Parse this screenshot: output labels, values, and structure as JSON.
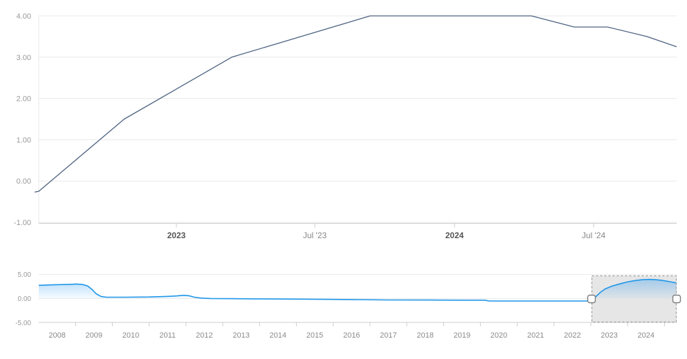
{
  "colors": {
    "background": "#ffffff",
    "grid": "#e9e9e9",
    "grid_light": "#ececec",
    "axis": "#cccccc",
    "y_label": "#999999",
    "x_label": "#888888",
    "x_label_bold": "#555555",
    "nav_year_label": "#8a8a8a",
    "main_line": "#4d6280",
    "nav_line": "#1e96e8",
    "nav_fill_top": "rgba(33,150,243,0.42)",
    "nav_fill_bottom": "rgba(33,150,243,0.03)",
    "selection_fill": "#e6e6e6",
    "selection_border": "#9a9a9a",
    "handle_fill": "#ffffff",
    "handle_border": "#7d7d7d"
  },
  "chart_data": [
    {
      "type": "line",
      "name": "main-chart",
      "title": "",
      "xlabel": "",
      "ylabel": "",
      "ylim": [
        -1,
        4
      ],
      "grid": true,
      "y_ticks": [
        {
          "v": 4,
          "label": "4.00"
        },
        {
          "v": 3,
          "label": "3.00"
        },
        {
          "v": 2,
          "label": "2.00"
        },
        {
          "v": 1,
          "label": "1.00"
        },
        {
          "v": 0,
          "label": "0.00"
        },
        {
          "v": -1,
          "label": "-1.00"
        }
      ],
      "x_ticks": [
        {
          "label": "2023",
          "fx": 0.2158,
          "bold": true
        },
        {
          "label": "Jul '23",
          "fx": 0.4328,
          "bold": false
        },
        {
          "label": "2024",
          "fx": 0.6518,
          "bold": true
        },
        {
          "label": "Jul '24",
          "fx": 0.8699,
          "bold": false
        }
      ],
      "series": [
        {
          "name": "rate-series",
          "color": "#4d6280",
          "points": [
            [
              "2022-07",
              -0.27,
              -0.0065
            ],
            [
              "2022-07",
              -0.25,
              0.0
            ],
            [
              "2022-11",
              1.5,
              0.134
            ],
            [
              "2023-03",
              3.0,
              0.3026
            ],
            [
              "2023-09",
              4.0,
              0.5195
            ],
            [
              "2024-04",
              4.0,
              0.7723
            ],
            [
              "2024-06",
              3.73,
              0.8395
            ],
            [
              "2024-07",
              3.73,
              0.8916
            ],
            [
              "2024-09",
              3.5,
              0.9534
            ],
            [
              "2024-10",
              3.25,
              1.0
            ]
          ]
        }
      ]
    },
    {
      "type": "area",
      "name": "navigator",
      "title": "",
      "ylim": [
        -5,
        5
      ],
      "grid": true,
      "y_ticks": [
        {
          "v": 5,
          "label": "5.00"
        },
        {
          "v": 0,
          "label": "0.00"
        },
        {
          "v": -5,
          "label": "-5.00"
        }
      ],
      "x_year_labels": [
        "2008",
        "2009",
        "2010",
        "2011",
        "2012",
        "2013",
        "2014",
        "2015",
        "2016",
        "2017",
        "2018",
        "2019",
        "2020",
        "2021",
        "2022",
        "2023",
        "2024"
      ],
      "series": [
        {
          "name": "rate-series-full-history",
          "color": "#1e96e8",
          "points": [
            [
              2008.0,
              2.75
            ],
            [
              2008.36,
              2.85
            ],
            [
              2008.83,
              2.95
            ],
            [
              2009.02,
              3.02
            ],
            [
              2009.2,
              2.92
            ],
            [
              2009.33,
              2.6
            ],
            [
              2009.45,
              1.9
            ],
            [
              2009.56,
              1.0
            ],
            [
              2009.69,
              0.45
            ],
            [
              2009.84,
              0.28
            ],
            [
              2010.33,
              0.28
            ],
            [
              2010.99,
              0.33
            ],
            [
              2011.46,
              0.45
            ],
            [
              2011.76,
              0.55
            ],
            [
              2011.95,
              0.68
            ],
            [
              2012.08,
              0.58
            ],
            [
              2012.23,
              0.28
            ],
            [
              2012.42,
              0.1
            ],
            [
              2012.68,
              0.02
            ],
            [
              2013.15,
              -0.02
            ],
            [
              2013.9,
              -0.06
            ],
            [
              2014.84,
              -0.1
            ],
            [
              2015.78,
              -0.16
            ],
            [
              2016.72,
              -0.22
            ],
            [
              2017.47,
              -0.28
            ],
            [
              2018.6,
              -0.3
            ],
            [
              2019.54,
              -0.33
            ],
            [
              2020.11,
              -0.33
            ],
            [
              2020.24,
              -0.5
            ],
            [
              2021.61,
              -0.5
            ],
            [
              2022.92,
              -0.48
            ],
            [
              2023.06,
              -0.1
            ],
            [
              2023.15,
              0.5
            ],
            [
              2023.26,
              1.3
            ],
            [
              2023.39,
              2.0
            ],
            [
              2023.58,
              2.6
            ],
            [
              2023.81,
              3.1
            ],
            [
              2024.02,
              3.5
            ],
            [
              2024.21,
              3.75
            ],
            [
              2024.39,
              3.9
            ],
            [
              2024.58,
              3.97
            ],
            [
              2024.77,
              3.9
            ],
            [
              2024.92,
              3.8
            ],
            [
              2025.07,
              3.6
            ],
            [
              2025.18,
              3.45
            ],
            [
              2025.33,
              3.25
            ]
          ]
        }
      ],
      "selection": {
        "from_fx": 0.8666,
        "to_fx": 1.0
      }
    }
  ]
}
